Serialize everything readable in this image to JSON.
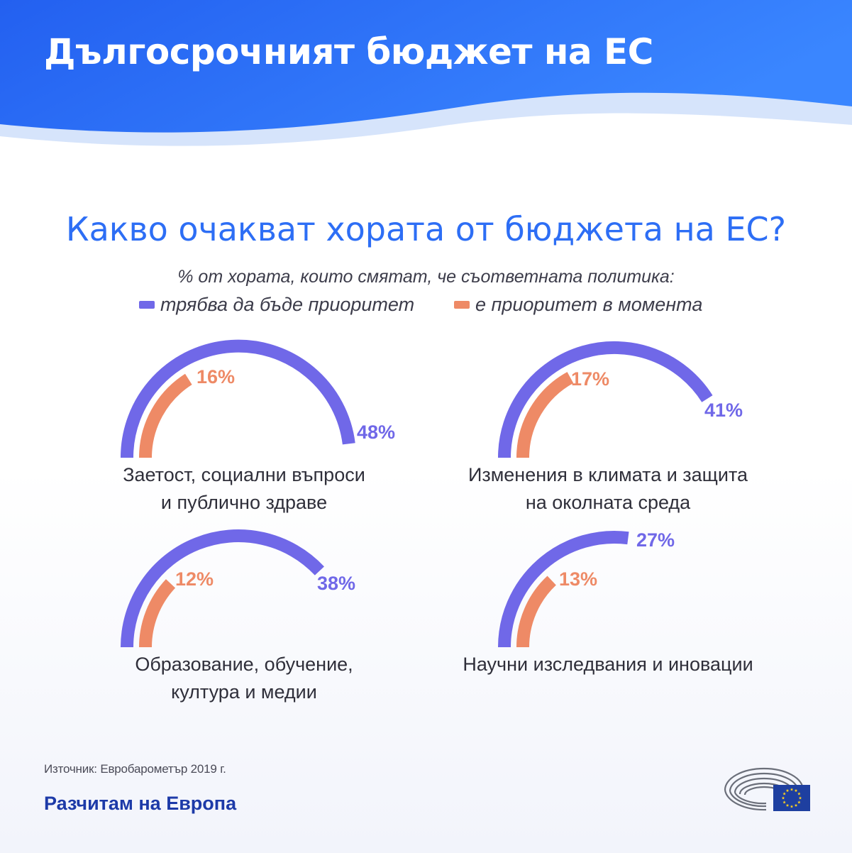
{
  "header": {
    "title": "Дългосрочният бюджет на ЕС"
  },
  "question": "Какво очакват хората от бюджета на ЕС?",
  "subtitle": "% от хората, които смятат, че съответната политика:",
  "legend": [
    {
      "label": "трябва да бъде приоритет",
      "color": "#7068e8"
    },
    {
      "label": "е приоритет в момента",
      "color": "#ee8a66"
    }
  ],
  "chart_data": {
    "type": "gauge",
    "subtitle": "% от хората, които смятат, че съответната политика:",
    "series": [
      {
        "name": "трябва да бъде приоритет",
        "color": "#7068e8"
      },
      {
        "name": "е приоритет в момента",
        "color": "#ee8a66"
      }
    ],
    "categories": [
      "Заетост, социални въпроси и публично здраве",
      "Изменения в климата и защита на околната среда",
      "Образование, обучение, култура и медии",
      "Научни изследвания и иновации"
    ],
    "values": {
      "трябва да бъде приоритет": [
        48,
        41,
        38,
        27
      ],
      "е приоритет в момента": [
        16,
        17,
        12,
        13
      ]
    },
    "unit": "%",
    "scale_max": 50
  },
  "charts": [
    {
      "label_lines": [
        "Заетост, социални въпроси",
        "и публично здраве"
      ],
      "should": 48,
      "should_text": "48%",
      "current": 16,
      "current_text": "16%"
    },
    {
      "label_lines": [
        "Изменения в климата и защита",
        "на околната среда"
      ],
      "should": 41,
      "should_text": "41%",
      "current": 17,
      "current_text": "17%"
    },
    {
      "label_lines": [
        "Образование, обучение,",
        "култура и медии"
      ],
      "should": 38,
      "should_text": "38%",
      "current": 12,
      "current_text": "12%"
    },
    {
      "label_lines": [
        "Научни изследвания и иновации"
      ],
      "should": 27,
      "should_text": "27%",
      "current": 13,
      "current_text": "13%"
    }
  ],
  "source": "Източник: Евробарометър 2019 г.",
  "footer": {
    "slogan": "Разчитам на Европа",
    "logo": "european-parliament-logo"
  },
  "colors": {
    "header_blue": "#2a6bf2",
    "title_blue": "#2d6ef5",
    "should": "#7068e8",
    "current": "#ee8a66",
    "footer_blue": "#1d3aa8"
  }
}
